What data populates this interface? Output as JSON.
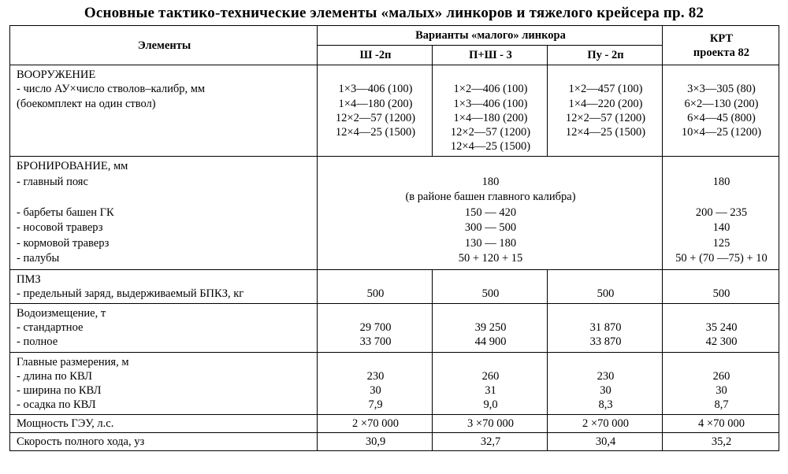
{
  "title": "Основные тактико-технические элементы «малых» линкоров и тяжелого крейсера пр. 82",
  "columns": {
    "elements": "Элементы",
    "variants_header": "Варианты «малого» линкора",
    "variant_a": "Ш -2п",
    "variant_b": "П+Ш - 3",
    "variant_c": "Пу - 2п",
    "krt_line1": "КРТ",
    "krt_line2": "проекта 82"
  },
  "arming": {
    "heading": "ВООРУЖЕНИЕ",
    "sub1": "- число АУ×число стволов–калибр, мм",
    "sub2": "(боекомплект на один ствол)",
    "a": [
      "1×3—406 (100)",
      "1×4—180 (200)",
      "12×2—57 (1200)",
      "12×4—25 (1500)"
    ],
    "b": [
      "1×2—406 (100)",
      "1×3—406 (100)",
      "1×4—180 (200)",
      "12×2—57 (1200)",
      "12×4—25 (1500)"
    ],
    "c": [
      "1×2—457 (100)",
      "1×4—220 (200)",
      "12×2—57 (1200)",
      "12×4—25 (1500)"
    ],
    "k": [
      "3×3—305 (80)",
      "6×2—130 (200)",
      "6×4—45 (800)",
      "10×4—25 (1200)"
    ]
  },
  "armor": {
    "heading": "БРОНИРОВАНИЕ, мм",
    "labels": [
      "- главный пояс",
      "",
      "- барбеты башен  ГК",
      "- носовой траверз",
      "- кормовой траверз",
      "- палубы"
    ],
    "merged": [
      "180",
      "(в районе башен главного калибра)",
      "150 — 420",
      "300 — 500",
      "130 — 180",
      "50 + 120 + 15"
    ],
    "k": [
      "180",
      "",
      "200 — 235",
      "140",
      "125",
      "50 + (70 —75) + 10"
    ]
  },
  "pmz": {
    "heading": "ПМЗ",
    "label": "- предельный заряд, выдерживаемый БПКЗ, кг",
    "a": "500",
    "b": "500",
    "c": "500",
    "k": "500"
  },
  "disp": {
    "heading": "Водоизмещение, т",
    "labels": [
      "- стандартное",
      "- полное"
    ],
    "a": [
      "29 700",
      "33 700"
    ],
    "b": [
      "39 250",
      "44 900"
    ],
    "c": [
      "31 870",
      "33 870"
    ],
    "k": [
      "35 240",
      "42 300"
    ]
  },
  "dims": {
    "heading": "Главные размерения, м",
    "labels": [
      "- длина по КВЛ",
      "- ширина по КВЛ",
      "- осадка по КВЛ"
    ],
    "a": [
      "230",
      "30",
      "7,9"
    ],
    "b": [
      "260",
      "31",
      "9,0"
    ],
    "c": [
      "230",
      "30",
      "8,3"
    ],
    "k": [
      "260",
      "30",
      "8,7"
    ]
  },
  "power": {
    "label": "Мощность ГЭУ, л.с.",
    "a": "2 ×70 000",
    "b": "3 ×70 000",
    "c": "2 ×70 000",
    "k": "4 ×70 000"
  },
  "speed": {
    "label": "Скорость полного хода, уз",
    "a": "30,9",
    "b": "32,7",
    "c": "30,4",
    "k": "35,2"
  },
  "style": {
    "border_color": "#000000",
    "background": "#ffffff",
    "font_family": "Times New Roman",
    "title_fontsize_pt": 14,
    "body_fontsize_pt": 11
  }
}
